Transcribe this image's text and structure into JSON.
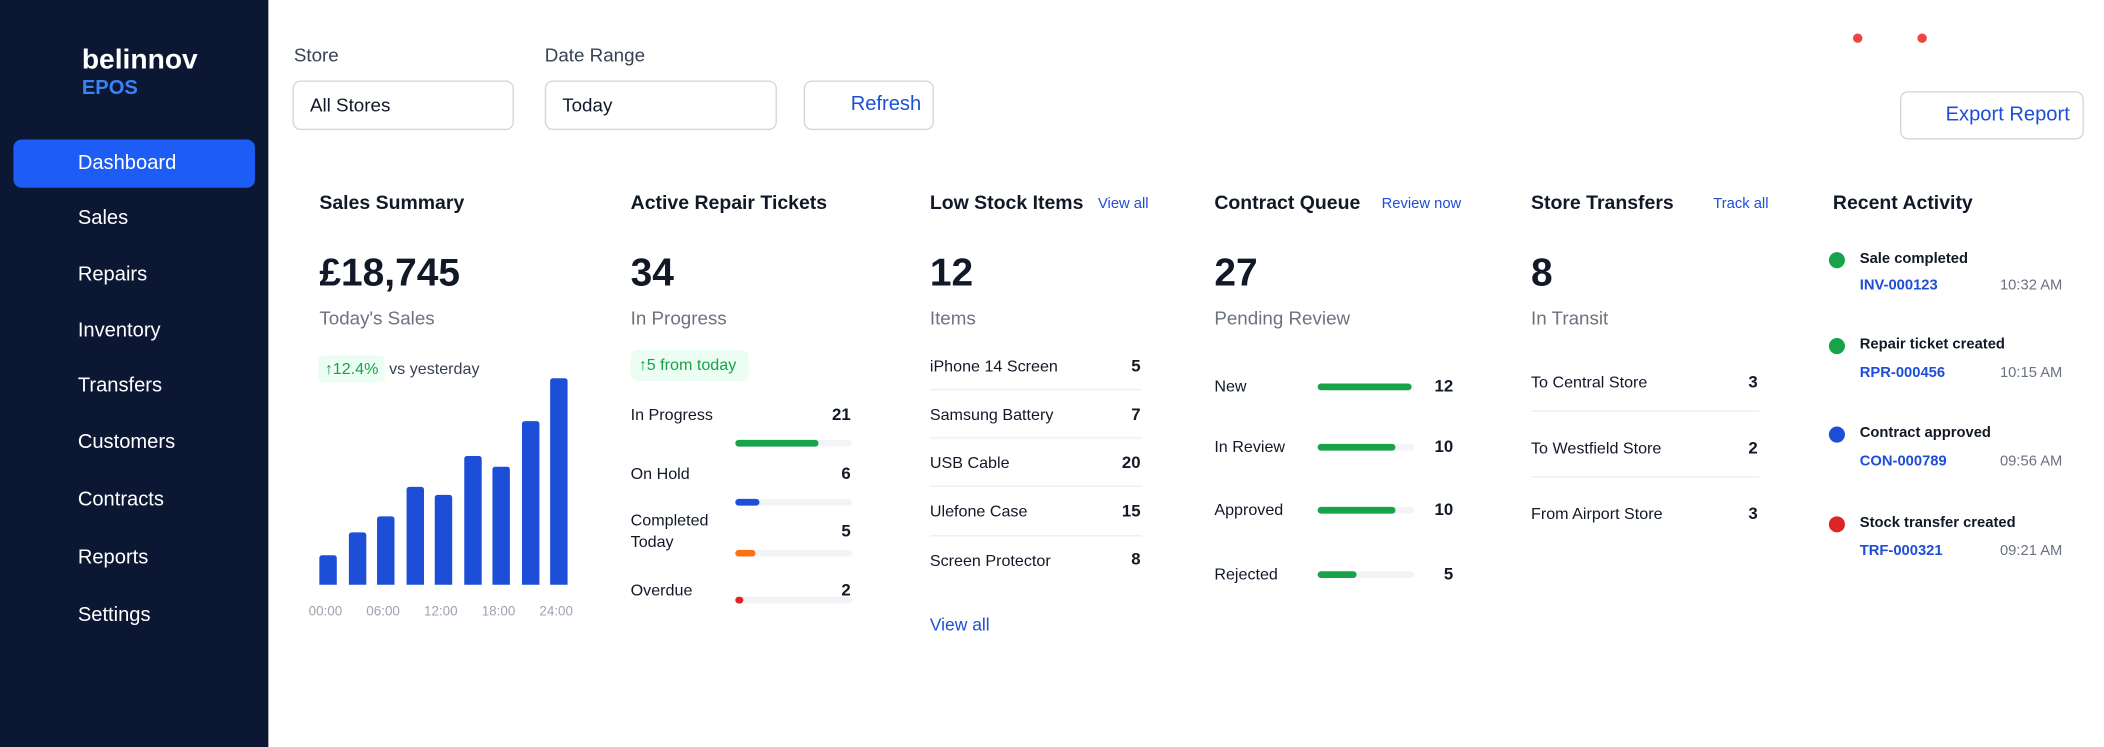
{
  "brand": {
    "name": "belinnov",
    "sub": "EPOS"
  },
  "nav": [
    "Dashboard",
    "Sales",
    "Repairs",
    "Inventory",
    "Transfers",
    "Customers",
    "Contracts",
    "Reports",
    "Settings"
  ],
  "filters": {
    "store_label": "Store",
    "store_value": "All Stores",
    "date_label": "Date Range",
    "date_value": "Today",
    "refresh": "Refresh"
  },
  "export": "Export Report",
  "sales_summary": {
    "title": "Sales Summary",
    "amount": "£18,745",
    "caption": "Today's Sales",
    "change": "↑12.4%",
    "change_note": "vs yesterday",
    "chart": {
      "type": "bar",
      "values": [
        22,
        39,
        51,
        73,
        67,
        96,
        88,
        122,
        154
      ],
      "color": "#1d4ed8",
      "xticks": [
        "00:00",
        "06:00",
        "12:00",
        "18:00",
        "24:00"
      ]
    }
  },
  "repair_tickets": {
    "title": "Active Repair Tickets",
    "count": 34,
    "caption": "In Progress",
    "badge": "↑5 from today",
    "rows": [
      {
        "label": "In Progress",
        "value": 21,
        "color": "#16a34a"
      },
      {
        "label": "On Hold",
        "value": 6,
        "color": "#1d4ed8"
      },
      {
        "label": "Completed Today",
        "value": 5,
        "color": "#f97316"
      },
      {
        "label": "Overdue",
        "value": 2,
        "color": "#dc2626"
      }
    ]
  },
  "low_stock": {
    "title": "Low Stock Items",
    "link": "View all",
    "count": 12,
    "caption": "Items",
    "rows": [
      {
        "label": "iPhone 14 Screen",
        "value": 5
      },
      {
        "label": "Samsung Battery",
        "value": 7
      },
      {
        "label": "USB Cable",
        "value": 20
      },
      {
        "label": "Ulefone Case",
        "value": 15
      },
      {
        "label": "Screen Protector",
        "value": 8
      }
    ],
    "footer_link": "View all"
  },
  "contract_queue": {
    "title": "Contract Queue",
    "link": "Review now",
    "count": 27,
    "caption": "Pending Review",
    "color": "#16a34a",
    "rows": [
      {
        "label": "New",
        "value": 12
      },
      {
        "label": "In Review",
        "value": 10
      },
      {
        "label": "Approved",
        "value": 10
      },
      {
        "label": "Rejected",
        "value": 5
      }
    ]
  },
  "store_transfers": {
    "title": "Store Transfers",
    "link": "Track all",
    "count": 8,
    "caption": "In Transit",
    "rows": [
      {
        "label": "To Central Store",
        "value": 3
      },
      {
        "label": "To Westfield Store",
        "value": 2
      },
      {
        "label": "From Airport Store",
        "value": 3
      }
    ]
  },
  "recent_activity": {
    "title": "Recent Activity",
    "items": [
      {
        "title": "Sale completed",
        "ref": "INV-000123",
        "time": "10:32 AM",
        "color": "#16a34a"
      },
      {
        "title": "Repair ticket created",
        "ref": "RPR-000456",
        "time": "10:15 AM",
        "color": "#16a34a"
      },
      {
        "title": "Contract approved",
        "ref": "CON-000789",
        "time": "09:56 AM",
        "color": "#1d4ed8"
      },
      {
        "title": "Stock transfer created",
        "ref": "TRF-000321",
        "time": "09:21 AM",
        "color": "#dc2626"
      }
    ]
  }
}
